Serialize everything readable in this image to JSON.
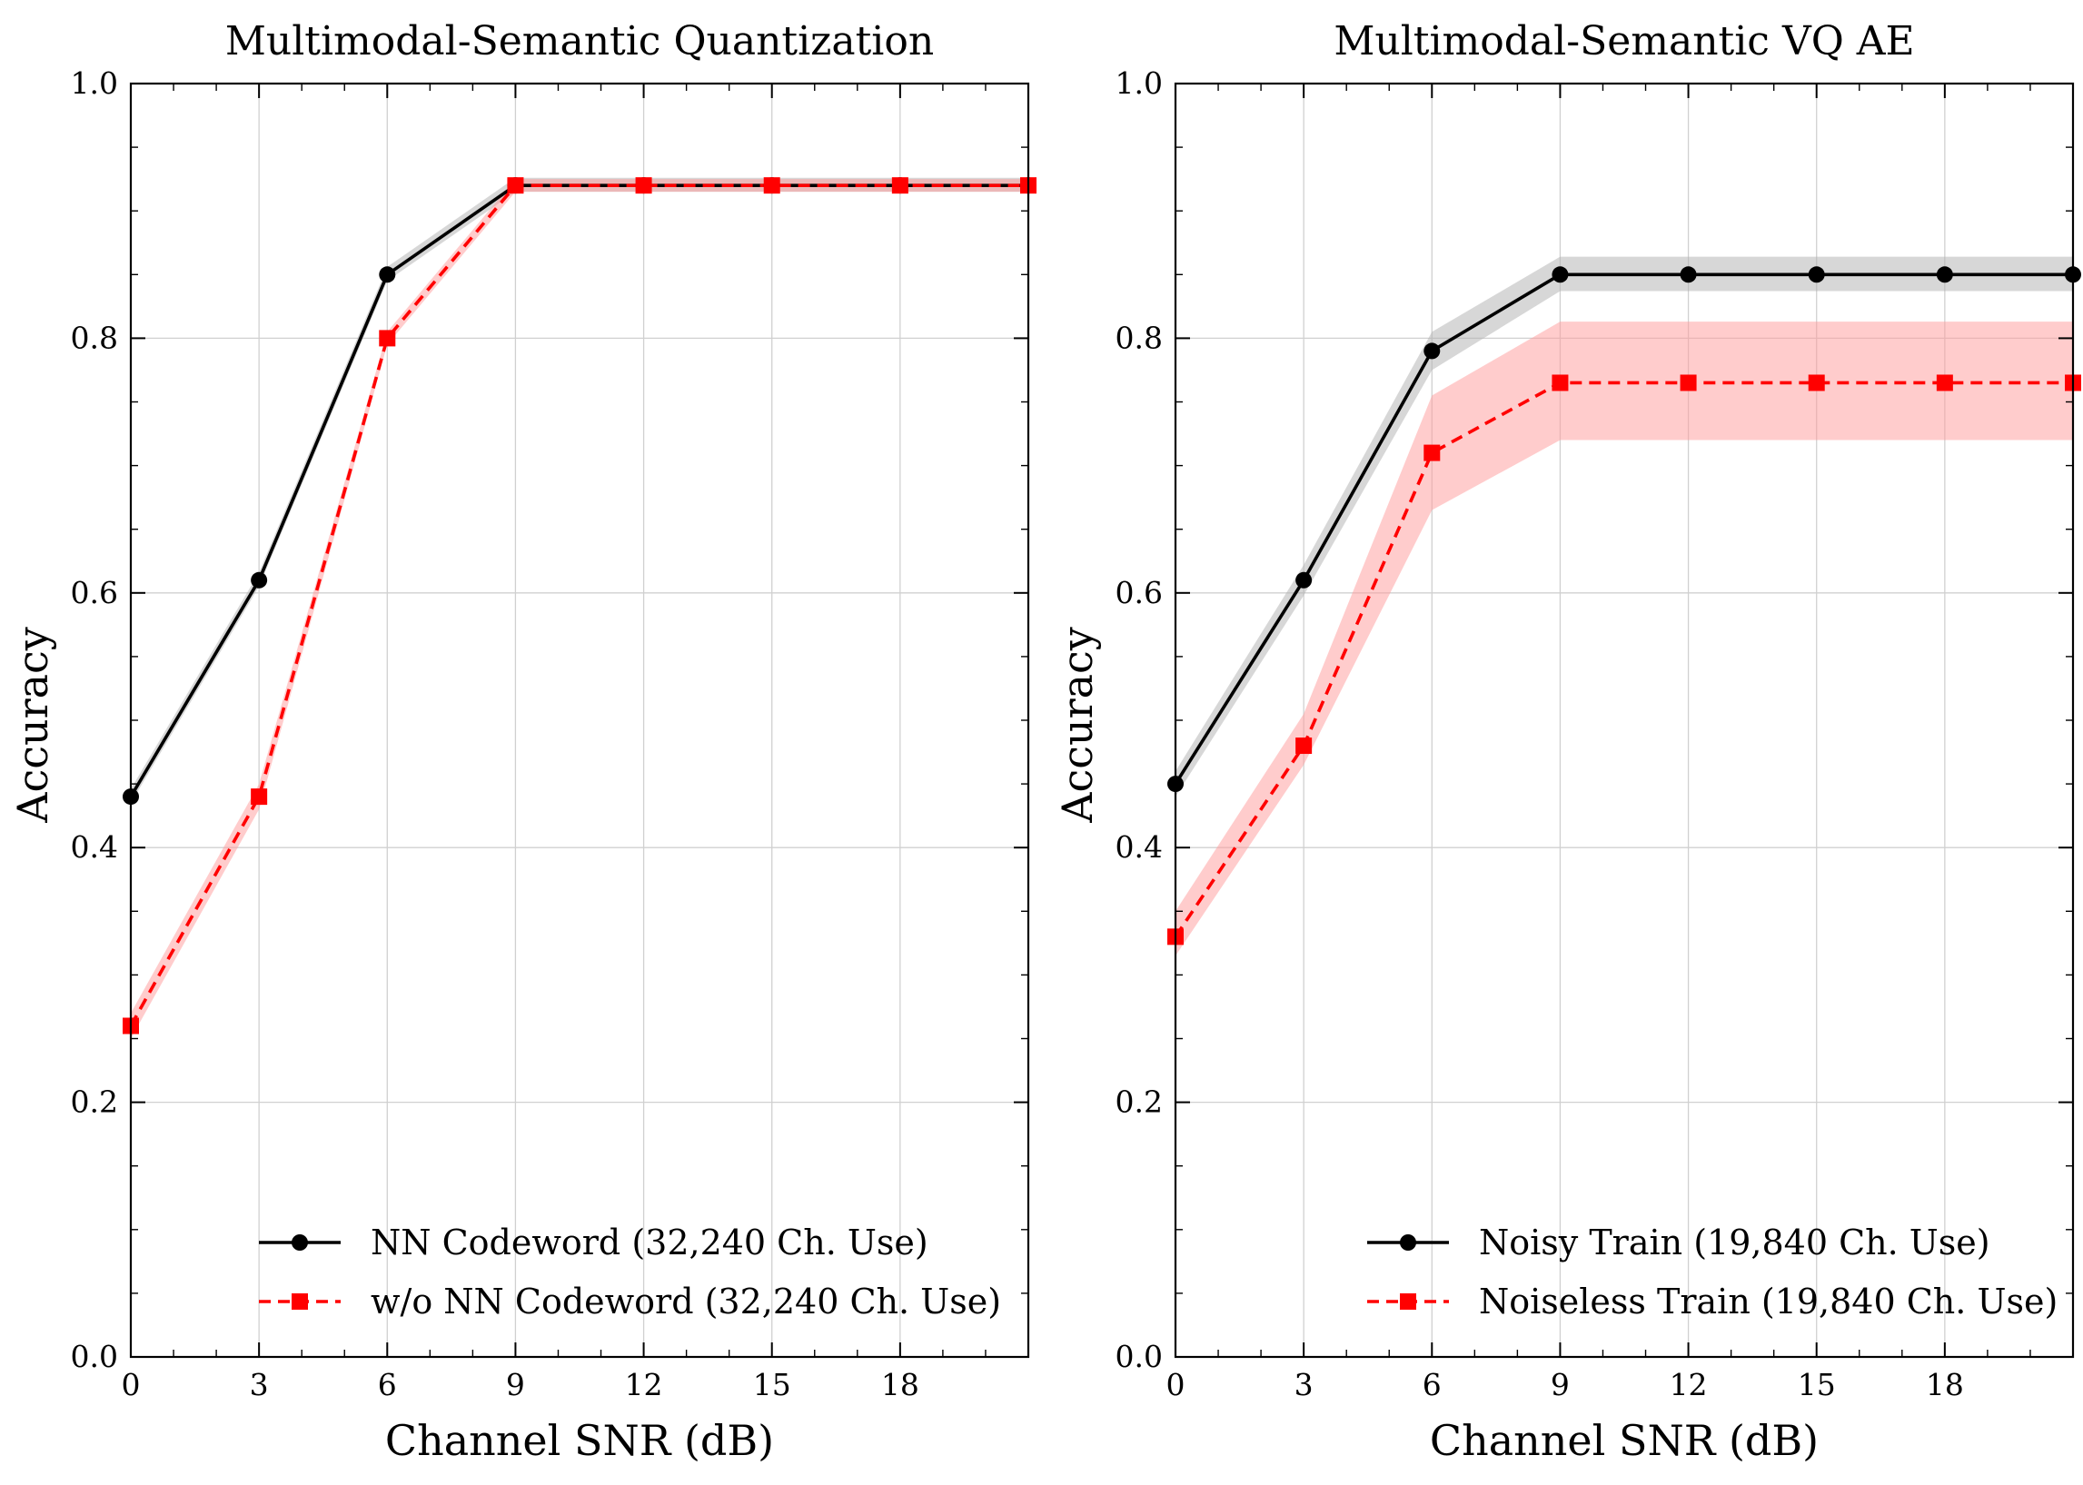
{
  "chart_data": [
    {
      "type": "line",
      "title": "Multimodal-Semantic Quantization",
      "xlabel": "Channel SNR (dB)",
      "ylabel": "Accuracy",
      "xlim": [
        0,
        21
      ],
      "ylim": [
        0.0,
        1.0
      ],
      "xticks": [
        0,
        3,
        6,
        9,
        12,
        15,
        18
      ],
      "xtick_labels": [
        "0",
        "3",
        "6",
        "9",
        "12",
        "15",
        "18"
      ],
      "yticks": [
        0.0,
        0.2,
        0.4,
        0.6,
        0.8,
        1.0
      ],
      "ytick_labels": [
        "0.0",
        "0.2",
        "0.4",
        "0.6",
        "0.8",
        "1.0"
      ],
      "grid": true,
      "legend_position": "lower-right",
      "x": [
        0,
        3,
        6,
        9,
        12,
        15,
        18,
        21
      ],
      "series": [
        {
          "name": "NN Codeword (32,240 Ch. Use)",
          "color": "#000000",
          "line_style": "solid",
          "marker": "circle",
          "band_color": "#b0b0b0",
          "values": [
            0.44,
            0.61,
            0.85,
            0.92,
            0.92,
            0.92,
            0.92,
            0.92
          ],
          "band_lower": [
            0.435,
            0.605,
            0.845,
            0.915,
            0.915,
            0.915,
            0.915,
            0.915
          ],
          "band_upper": [
            0.446,
            0.616,
            0.856,
            0.926,
            0.926,
            0.926,
            0.926,
            0.926
          ]
        },
        {
          "name": "w/o NN Codeword (32,240 Ch. Use)",
          "color": "#ff0000",
          "line_style": "dashed",
          "marker": "square",
          "band_color": "#ff9a9a",
          "values": [
            0.26,
            0.44,
            0.8,
            0.92,
            0.92,
            0.92,
            0.92,
            0.92
          ],
          "band_lower": [
            0.25,
            0.43,
            0.795,
            0.915,
            0.915,
            0.915,
            0.915,
            0.915
          ],
          "band_upper": [
            0.27,
            0.45,
            0.805,
            0.925,
            0.925,
            0.925,
            0.925,
            0.925
          ]
        }
      ]
    },
    {
      "type": "line",
      "title": "Multimodal-Semantic VQ AE",
      "xlabel": "Channel SNR (dB)",
      "ylabel": "Accuracy",
      "xlim": [
        0,
        21
      ],
      "ylim": [
        0.0,
        1.0
      ],
      "xticks": [
        0,
        3,
        6,
        9,
        12,
        15,
        18
      ],
      "xtick_labels": [
        "0",
        "3",
        "6",
        "9",
        "12",
        "15",
        "18"
      ],
      "yticks": [
        0.0,
        0.2,
        0.4,
        0.6,
        0.8,
        1.0
      ],
      "ytick_labels": [
        "0.0",
        "0.2",
        "0.4",
        "0.6",
        "0.8",
        "1.0"
      ],
      "grid": true,
      "legend_position": "lower-right",
      "x": [
        0,
        3,
        6,
        9,
        12,
        15,
        18,
        21
      ],
      "series": [
        {
          "name": "Noisy Train (19,840 Ch. Use)",
          "color": "#000000",
          "line_style": "solid",
          "marker": "circle",
          "band_color": "#b0b0b0",
          "values": [
            0.45,
            0.61,
            0.79,
            0.85,
            0.85,
            0.85,
            0.85,
            0.85
          ],
          "band_lower": [
            0.44,
            0.598,
            0.775,
            0.837,
            0.837,
            0.837,
            0.837,
            0.837
          ],
          "band_upper": [
            0.46,
            0.622,
            0.805,
            0.864,
            0.864,
            0.864,
            0.864,
            0.864
          ]
        },
        {
          "name": "Noiseless Train (19,840 Ch. Use)",
          "color": "#ff0000",
          "line_style": "dashed",
          "marker": "square",
          "band_color": "#ff9a9a",
          "values": [
            0.33,
            0.48,
            0.71,
            0.765,
            0.765,
            0.765,
            0.765,
            0.765
          ],
          "band_lower": [
            0.315,
            0.465,
            0.665,
            0.72,
            0.72,
            0.72,
            0.72,
            0.72
          ],
          "band_upper": [
            0.35,
            0.505,
            0.755,
            0.813,
            0.813,
            0.813,
            0.813,
            0.813
          ]
        }
      ]
    }
  ]
}
